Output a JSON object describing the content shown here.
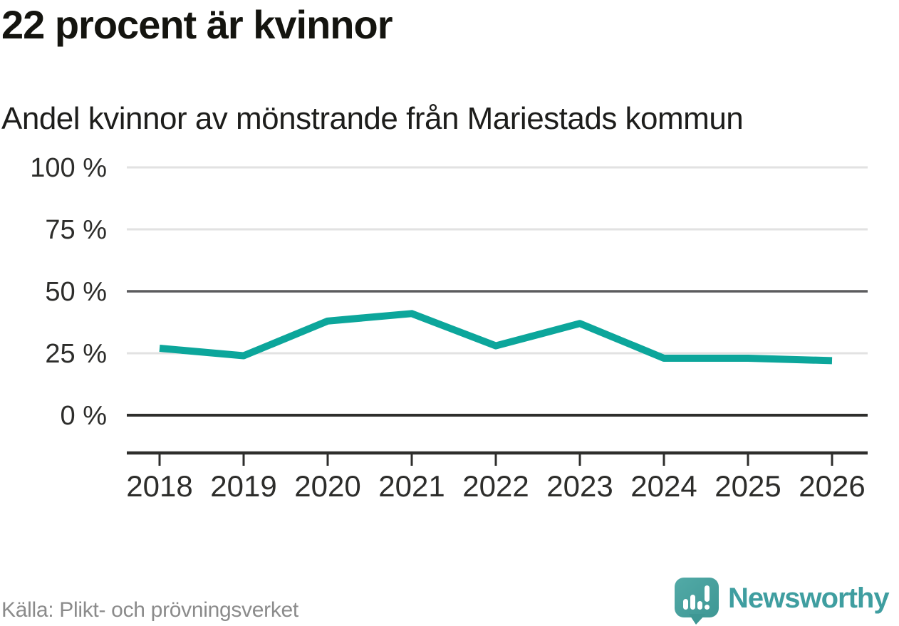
{
  "header": {
    "title": "22 procent är kvinnor",
    "subtitle": "Andel kvinnor av mönstrande från Mariestads kommun"
  },
  "chart_data": {
    "type": "line",
    "title": "22 procent är kvinnor",
    "subtitle": "Andel kvinnor av mönstrande från Mariestads kommun",
    "x": [
      "2018",
      "2019",
      "2020",
      "2021",
      "2022",
      "2023",
      "2024",
      "2025",
      "2026"
    ],
    "series": [
      {
        "name": "Andel kvinnor av mönstrande",
        "color": "#0ca69b",
        "values": [
          27,
          24,
          38,
          41,
          28,
          37,
          23,
          23,
          22
        ]
      }
    ],
    "ylim": [
      0,
      100
    ],
    "yticks": [
      {
        "value": 0,
        "label": "0 %",
        "emphasis": "baseline"
      },
      {
        "value": 25,
        "label": "25 %",
        "emphasis": "light"
      },
      {
        "value": 50,
        "label": "50 %",
        "emphasis": "strong"
      },
      {
        "value": 75,
        "label": "75 %",
        "emphasis": "light"
      },
      {
        "value": 100,
        "label": "100 %",
        "emphasis": "light"
      }
    ],
    "grid": true,
    "legend": "none",
    "xlabel": "",
    "ylabel": ""
  },
  "footer": {
    "source": "Källa: Plikt- och prövningsverket",
    "brand": "Newsworthy"
  },
  "colors": {
    "line": "#0ca69b",
    "brand_teal": "#3f9ea0",
    "logo_top": "#52aaa7",
    "logo_bottom": "#3e9794",
    "grid_light": "#e2e2e2",
    "grid_strong": "#5c5c5e",
    "axis_dark": "#2e2e2c",
    "source_gray": "#8b8b8b"
  }
}
